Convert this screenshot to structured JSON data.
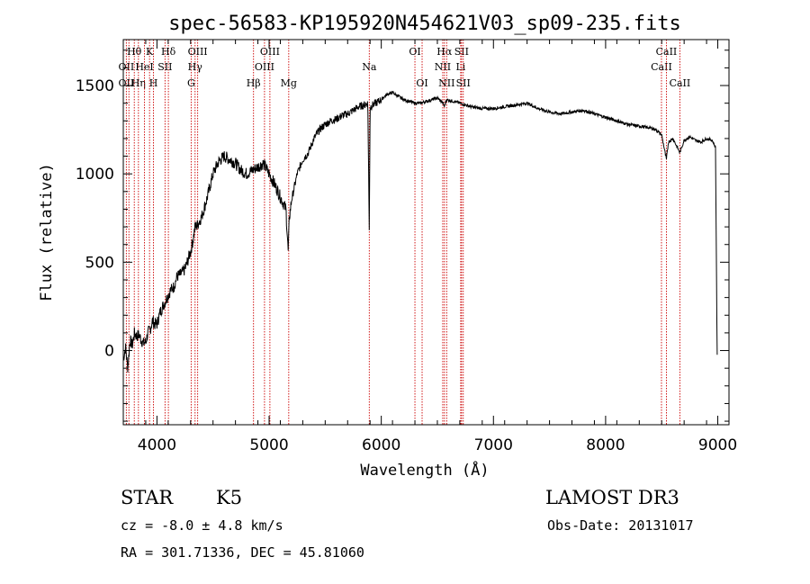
{
  "chart_data": {
    "type": "line",
    "title": "spec-56583-KP195920N454621V03_sp09-235.fits",
    "xlabel": "Wavelength (Å)",
    "ylabel": "Flux (relative)",
    "xlim": [
      3700,
      9100
    ],
    "ylim": [
      -420,
      1760
    ],
    "xticks": [
      4000,
      5000,
      6000,
      7000,
      8000,
      9000
    ],
    "yticks": [
      0,
      500,
      1000,
      1500
    ],
    "spectrum": {
      "x": [
        3700,
        3720,
        3740,
        3760,
        3780,
        3800,
        3820,
        3840,
        3860,
        3880,
        3900,
        3920,
        3940,
        3960,
        3980,
        4000,
        4030,
        4060,
        4090,
        4120,
        4150,
        4180,
        4210,
        4250,
        4300,
        4320,
        4340,
        4360,
        4400,
        4450,
        4500,
        4550,
        4600,
        4650,
        4700,
        4750,
        4800,
        4850,
        4900,
        4950,
        5000,
        5050,
        5100,
        5150,
        5170,
        5180,
        5200,
        5250,
        5300,
        5350,
        5400,
        5450,
        5500,
        5550,
        5600,
        5650,
        5700,
        5750,
        5800,
        5850,
        5880,
        5893,
        5900,
        5950,
        6000,
        6050,
        6100,
        6150,
        6200,
        6250,
        6300,
        6350,
        6400,
        6450,
        6500,
        6550,
        6563,
        6580,
        6650,
        6700,
        6750,
        6800,
        6900,
        7000,
        7100,
        7200,
        7300,
        7400,
        7500,
        7600,
        7700,
        7800,
        7900,
        8000,
        8100,
        8200,
        8300,
        8400,
        8450,
        8500,
        8542,
        8560,
        8600,
        8662,
        8700,
        8750,
        8800,
        8850,
        8900,
        8950,
        8980,
        8990,
        8995
      ],
      "y": [
        -50,
        20,
        -100,
        60,
        30,
        100,
        80,
        90,
        60,
        40,
        50,
        100,
        120,
        170,
        150,
        150,
        220,
        260,
        300,
        340,
        360,
        420,
        430,
        460,
        560,
        620,
        700,
        710,
        760,
        870,
        1000,
        1070,
        1100,
        1080,
        1060,
        1020,
        1000,
        1020,
        1040,
        1060,
        1000,
        940,
        870,
        800,
        560,
        750,
        850,
        1000,
        1080,
        1120,
        1200,
        1250,
        1280,
        1300,
        1310,
        1330,
        1340,
        1360,
        1380,
        1390,
        1400,
        680,
        1380,
        1400,
        1420,
        1450,
        1460,
        1440,
        1420,
        1410,
        1400,
        1400,
        1410,
        1420,
        1430,
        1400,
        1380,
        1420,
        1410,
        1400,
        1390,
        1380,
        1370,
        1370,
        1380,
        1390,
        1400,
        1370,
        1350,
        1340,
        1350,
        1360,
        1340,
        1320,
        1300,
        1280,
        1270,
        1260,
        1250,
        1220,
        1080,
        1180,
        1200,
        1120,
        1190,
        1210,
        1190,
        1180,
        1200,
        1190,
        1150,
        300,
        -20
      ]
    },
    "line_markers": [
      {
        "wave": 3727,
        "labels": [
          {
            "text": "OII",
            "row": 1
          },
          {
            "text": "OII",
            "row": 2
          }
        ]
      },
      {
        "wave": 3750,
        "labels": []
      },
      {
        "wave": 3798,
        "labels": [
          {
            "text": "Hθ",
            "row": 0
          }
        ]
      },
      {
        "wave": 3835,
        "labels": [
          {
            "text": "Hη",
            "row": 2
          }
        ]
      },
      {
        "wave": 3889,
        "labels": [
          {
            "text": "HeI",
            "row": 1
          }
        ]
      },
      {
        "wave": 3934,
        "labels": [
          {
            "text": "K",
            "row": 0
          }
        ]
      },
      {
        "wave": 3969,
        "labels": [
          {
            "text": "H",
            "row": 2
          }
        ]
      },
      {
        "wave": 4072,
        "labels": [
          {
            "text": "SII",
            "row": 1
          }
        ]
      },
      {
        "wave": 4102,
        "labels": [
          {
            "text": "Hδ",
            "row": 0
          }
        ]
      },
      {
        "wave": 4305,
        "labels": [
          {
            "text": "G",
            "row": 2
          }
        ]
      },
      {
        "wave": 4340,
        "labels": [
          {
            "text": "Hγ",
            "row": 1
          }
        ]
      },
      {
        "wave": 4363,
        "labels": [
          {
            "text": "OIII",
            "row": 0
          }
        ]
      },
      {
        "wave": 4861,
        "labels": [
          {
            "text": "Hβ",
            "row": 2
          }
        ]
      },
      {
        "wave": 4959,
        "labels": [
          {
            "text": "OIII",
            "row": 1
          }
        ]
      },
      {
        "wave": 5007,
        "labels": [
          {
            "text": "OIII",
            "row": 0
          }
        ]
      },
      {
        "wave": 5175,
        "labels": [
          {
            "text": "Mg",
            "row": 2
          }
        ]
      },
      {
        "wave": 5893,
        "labels": [
          {
            "text": "Na",
            "row": 1
          }
        ]
      },
      {
        "wave": 6300,
        "labels": [
          {
            "text": "OI",
            "row": 0
          }
        ]
      },
      {
        "wave": 6364,
        "labels": [
          {
            "text": "OI",
            "row": 2
          }
        ]
      },
      {
        "wave": 6548,
        "labels": [
          {
            "text": "NII",
            "row": 1
          }
        ]
      },
      {
        "wave": 6563,
        "labels": [
          {
            "text": "Hα",
            "row": 0
          }
        ]
      },
      {
        "wave": 6583,
        "labels": [
          {
            "text": "NII",
            "row": 2
          }
        ]
      },
      {
        "wave": 6708,
        "labels": [
          {
            "text": "Li",
            "row": 1
          }
        ]
      },
      {
        "wave": 6716,
        "labels": [
          {
            "text": "SII",
            "row": 0
          }
        ]
      },
      {
        "wave": 6731,
        "labels": [
          {
            "text": "SII",
            "row": 2
          }
        ]
      },
      {
        "wave": 8498,
        "labels": [
          {
            "text": "CaII",
            "row": 1
          }
        ]
      },
      {
        "wave": 8542,
        "labels": [
          {
            "text": "CaII",
            "row": 0
          }
        ]
      },
      {
        "wave": 8662,
        "labels": [
          {
            "text": "CaII",
            "row": 2
          }
        ]
      }
    ],
    "line_color": "#000000",
    "marker_color": "#cc0000"
  },
  "info": {
    "class_label": "STAR",
    "subclass": "K5",
    "survey": "LAMOST DR3",
    "cz": "cz = -8.0 ± 4.8 km/s",
    "obs_date": "Obs-Date: 20131017",
    "coords": "RA = 301.71336, DEC =  45.81060"
  }
}
